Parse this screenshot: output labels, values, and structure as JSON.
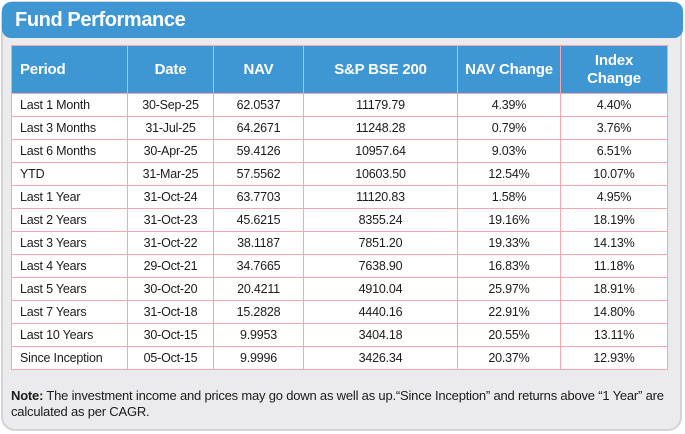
{
  "title": "Fund Performance",
  "colors": {
    "accent_blue": "#3e96d2",
    "table_border_pink": "#f2a8b0",
    "panel_background": "#ebebed",
    "panel_border": "#d3d3d6",
    "header_text": "#ffffff",
    "body_text": "#1b1b1b"
  },
  "table": {
    "columns": [
      {
        "label": "Period"
      },
      {
        "label": "Date"
      },
      {
        "label": "NAV"
      },
      {
        "label": "S&P BSE 200"
      },
      {
        "label": "NAV Change"
      },
      {
        "label": "Index Change"
      }
    ],
    "rows": [
      [
        "Last 1 Month",
        "30-Sep-25",
        "62.0537",
        "11179.79",
        "4.39%",
        "4.40%"
      ],
      [
        "Last 3 Months",
        "31-Jul-25",
        "64.2671",
        "11248.28",
        "0.79%",
        "3.76%"
      ],
      [
        "Last 6 Months",
        "30-Apr-25",
        "59.4126",
        "10957.64",
        "9.03%",
        "6.51%"
      ],
      [
        "YTD",
        "31-Mar-25",
        "57.5562",
        "10603.50",
        "12.54%",
        "10.07%"
      ],
      [
        "Last 1 Year",
        "31-Oct-24",
        "63.7703",
        "11120.83",
        "1.58%",
        "4.95%"
      ],
      [
        "Last 2 Years",
        "31-Oct-23",
        "45.6215",
        "8355.24",
        "19.16%",
        "18.19%"
      ],
      [
        "Last 3 Years",
        "31-Oct-22",
        "38.1187",
        "7851.20",
        "19.33%",
        "14.13%"
      ],
      [
        "Last 4 Years",
        "29-Oct-21",
        "34.7665",
        "7638.90",
        "16.83%",
        "11.18%"
      ],
      [
        "Last 5 Years",
        "30-Oct-20",
        "20.4211",
        "4910.04",
        "25.97%",
        "18.91%"
      ],
      [
        "Last 7 Years",
        "31-Oct-18",
        "15.2828",
        "4440.16",
        "22.91%",
        "14.80%"
      ],
      [
        "Last 10 Years",
        "30-Oct-15",
        "9.9953",
        "3404.18",
        "20.55%",
        "13.11%"
      ],
      [
        "Since Inception",
        "05-Oct-15",
        "9.9996",
        "3426.34",
        "20.37%",
        "12.93%"
      ]
    ]
  },
  "note": {
    "label": "Note:",
    "text": " The investment income and prices may go down as well as up.“Since Inception” and returns above “1 Year” are calculated as per CAGR."
  }
}
